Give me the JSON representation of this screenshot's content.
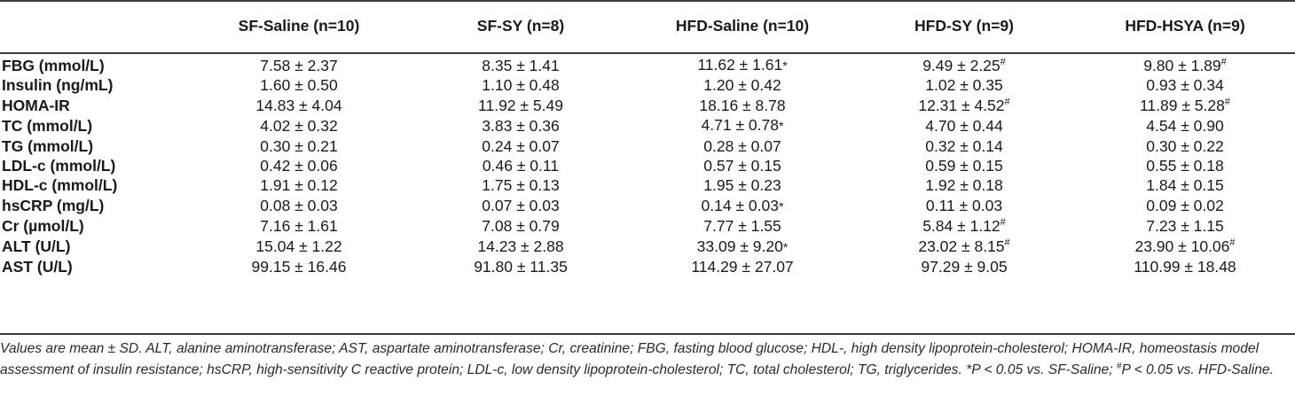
{
  "table": {
    "columns": [
      "",
      "SF-Saline (n=10)",
      "SF-SY (n=8)",
      "HFD-Saline (n=10)",
      "HFD-SY (n=9)",
      "HFD-HSYA (n=9)"
    ],
    "rows": [
      {
        "label": "FBG (mmol/L)",
        "cells": [
          {
            "value": "7.58 ± 2.37",
            "mark": ""
          },
          {
            "value": "8.35 ± 1.41",
            "mark": ""
          },
          {
            "value": "11.62 ± 1.61",
            "mark": "*"
          },
          {
            "value": "9.49 ± 2.25",
            "mark": "#"
          },
          {
            "value": "9.80 ± 1.89",
            "mark": "#"
          }
        ]
      },
      {
        "label": "Insulin (ng/mL)",
        "cells": [
          {
            "value": "1.60 ± 0.50",
            "mark": ""
          },
          {
            "value": "1.10 ± 0.48",
            "mark": ""
          },
          {
            "value": "1.20 ± 0.42",
            "mark": ""
          },
          {
            "value": "1.02 ± 0.35",
            "mark": ""
          },
          {
            "value": "0.93 ± 0.34",
            "mark": ""
          }
        ]
      },
      {
        "label": "HOMA-IR",
        "cells": [
          {
            "value": "14.83 ± 4.04",
            "mark": ""
          },
          {
            "value": "11.92 ± 5.49",
            "mark": ""
          },
          {
            "value": "18.16 ± 8.78",
            "mark": ""
          },
          {
            "value": "12.31 ± 4.52",
            "mark": "#"
          },
          {
            "value": "11.89 ± 5.28",
            "mark": "#"
          }
        ]
      },
      {
        "label": "TC (mmol/L)",
        "cells": [
          {
            "value": "4.02 ± 0.32",
            "mark": ""
          },
          {
            "value": "3.83 ± 0.36",
            "mark": ""
          },
          {
            "value": "4.71 ± 0.78",
            "mark": "*"
          },
          {
            "value": "4.70 ± 0.44",
            "mark": ""
          },
          {
            "value": "4.54 ± 0.90",
            "mark": ""
          }
        ]
      },
      {
        "label": "TG (mmol/L)",
        "cells": [
          {
            "value": "0.30 ± 0.21",
            "mark": ""
          },
          {
            "value": "0.24 ± 0.07",
            "mark": ""
          },
          {
            "value": "0.28 ± 0.07",
            "mark": ""
          },
          {
            "value": "0.32 ± 0.14",
            "mark": ""
          },
          {
            "value": "0.30 ± 0.22",
            "mark": ""
          }
        ]
      },
      {
        "label": "LDL-c (mmol/L)",
        "cells": [
          {
            "value": "0.42 ± 0.06",
            "mark": ""
          },
          {
            "value": "0.46 ± 0.11",
            "mark": ""
          },
          {
            "value": "0.57 ± 0.15",
            "mark": ""
          },
          {
            "value": "0.59 ± 0.15",
            "mark": ""
          },
          {
            "value": "0.55 ± 0.18",
            "mark": ""
          }
        ]
      },
      {
        "label": "HDL-c (mmol/L)",
        "cells": [
          {
            "value": "1.91 ± 0.12",
            "mark": ""
          },
          {
            "value": "1.75 ± 0.13",
            "mark": ""
          },
          {
            "value": "1.95 ± 0.23",
            "mark": ""
          },
          {
            "value": "1.92 ± 0.18",
            "mark": ""
          },
          {
            "value": "1.84 ± 0.15",
            "mark": ""
          }
        ]
      },
      {
        "label": "hsCRP (mg/L)",
        "cells": [
          {
            "value": "0.08 ± 0.03",
            "mark": ""
          },
          {
            "value": "0.07 ± 0.03",
            "mark": ""
          },
          {
            "value": "0.14 ± 0.03",
            "mark": "*"
          },
          {
            "value": "0.11 ± 0.03",
            "mark": ""
          },
          {
            "value": "0.09 ± 0.02",
            "mark": ""
          }
        ]
      },
      {
        "label": "Cr (µmol/L)",
        "cells": [
          {
            "value": "7.16 ± 1.61",
            "mark": ""
          },
          {
            "value": "7.08 ± 0.79",
            "mark": ""
          },
          {
            "value": "7.77 ± 1.55",
            "mark": ""
          },
          {
            "value": "5.84 ± 1.12",
            "mark": "#"
          },
          {
            "value": "7.23 ± 1.15",
            "mark": ""
          }
        ]
      },
      {
        "label": "ALT (U/L)",
        "cells": [
          {
            "value": "15.04 ± 1.22",
            "mark": ""
          },
          {
            "value": "14.23 ± 2.88",
            "mark": ""
          },
          {
            "value": "33.09 ± 9.20",
            "mark": "*"
          },
          {
            "value": "23.02 ± 8.15",
            "mark": "#"
          },
          {
            "value": "23.90 ± 10.06",
            "mark": "#"
          }
        ]
      },
      {
        "label": "AST (U/L)",
        "cells": [
          {
            "value": "99.15 ± 16.46",
            "mark": ""
          },
          {
            "value": "91.80 ± 11.35",
            "mark": ""
          },
          {
            "value": "114.29 ± 27.07",
            "mark": ""
          },
          {
            "value": "97.29 ± 9.05",
            "mark": ""
          },
          {
            "value": "110.99 ± 18.48",
            "mark": ""
          }
        ]
      }
    ]
  },
  "footnote": {
    "main": "Values are mean ± SD. ALT, alanine aminotransferase; AST, aspartate aminotransferase; Cr, creatinine; FBG, fasting blood glucose; HDL-, high density lipoprotein-cholesterol; HOMA-IR, homeostasis model assessment of insulin resistance; hsCRP, high-sensitivity C reactive protein; LDL-c, low density lipoprotein-cholesterol; TC, total cholesterol; TG, triglycerides. ",
    "star_mark": "*",
    "star_text": "P < 0.05 vs. SF-Saline; ",
    "hash_mark": "#",
    "hash_text": "P < 0.05 vs. HFD-Saline."
  }
}
